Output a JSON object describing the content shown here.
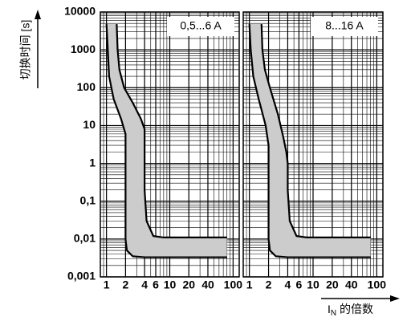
{
  "chart_data": [
    {
      "type": "band",
      "title": "0,5...6 A",
      "ylabel": "切换时间 [s]",
      "xscale": "log",
      "yscale": "log",
      "grid": true,
      "minor_grid": true,
      "color": "#cccccc",
      "xlim": [
        0.8,
        125
      ],
      "ylim": [
        0.001,
        10000
      ],
      "xticks": [
        1,
        2,
        4,
        6,
        10,
        20,
        40,
        100
      ],
      "yticks": [
        {
          "value": 0.001,
          "label": "0,001"
        },
        {
          "value": 0.01,
          "label": "0,01"
        },
        {
          "value": 0.1,
          "label": "0,1"
        },
        1,
        10,
        100,
        1000,
        10000
      ],
      "series": [
        {
          "x": [
            1.45,
            1.5,
            1.6,
            1.9,
            2.6,
            3.5,
            4,
            4,
            4,
            4.3,
            5.5,
            8,
            80
          ],
          "values": [
            4800,
            1000,
            300,
            100,
            40,
            15,
            8,
            1,
            0.2,
            0.03,
            0.012,
            0.011,
            0.011
          ]
        },
        {
          "x": [
            1,
            1.05,
            1.1,
            1.3,
            1.7,
            2,
            2,
            2,
            2.1,
            2.6,
            4,
            80
          ],
          "values": [
            4800,
            1000,
            200,
            50,
            15,
            6,
            1,
            0.01,
            0.005,
            0.0035,
            0.0033,
            0.0033
          ]
        }
      ]
    },
    {
      "type": "band",
      "title": "8...16 A",
      "xlabel": {
        "main": "I",
        "sub": "N",
        "rest": " 的倍数"
      },
      "xscale": "log",
      "yscale": "log",
      "grid": true,
      "minor_grid": true,
      "color": "#cccccc",
      "xlim": [
        0.8,
        125
      ],
      "ylim": [
        0.001,
        10000
      ],
      "xticks": [
        1,
        2,
        4,
        6,
        10,
        20,
        40,
        100
      ],
      "yticks": [
        {
          "value": 0.001,
          "label": "0,001"
        },
        {
          "value": 0.01,
          "label": "0,01"
        },
        {
          "value": 0.1,
          "label": "0,1"
        },
        1,
        10,
        100,
        1000,
        10000
      ],
      "series": [
        {
          "x": [
            1.55,
            1.6,
            1.75,
            2.1,
            2.8,
            3.4,
            3.8,
            4,
            4,
            4.3,
            5.5,
            8,
            80
          ],
          "values": [
            4800,
            1000,
            300,
            100,
            20,
            5,
            2,
            1,
            0.2,
            0.03,
            0.012,
            0.011,
            0.011
          ]
        },
        {
          "x": [
            1,
            1.05,
            1.15,
            1.4,
            1.8,
            2,
            2,
            2,
            2.1,
            2.6,
            4,
            80
          ],
          "values": [
            4800,
            1000,
            200,
            50,
            10,
            3,
            1,
            0.01,
            0.005,
            0.0035,
            0.0033,
            0.0033
          ]
        }
      ]
    }
  ]
}
